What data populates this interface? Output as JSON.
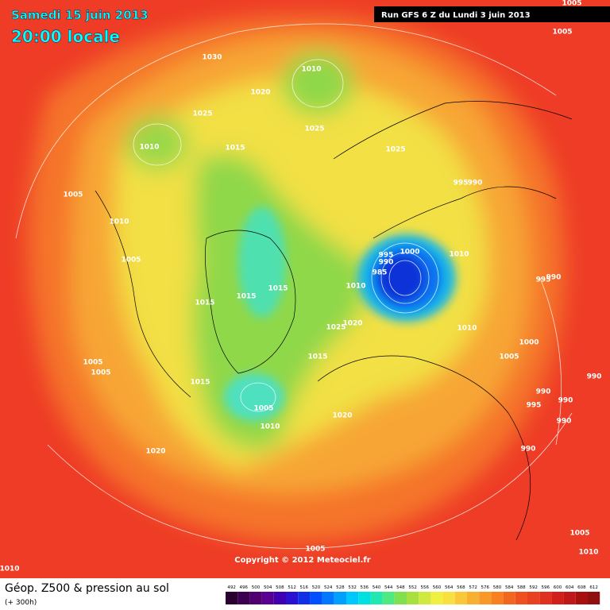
{
  "header": {
    "date": "Samedi 15 juin 2013",
    "time": "20:00 locale",
    "run": "Run GFS 6 Z du Lundi 3 juin 2013"
  },
  "copyright": "Copyright © 2012 Meteociel.fr",
  "footer": {
    "title": "Géop. Z500 & pression au sol",
    "lead": "(+ 300h)"
  },
  "map": {
    "isobar_labels": [
      1005,
      1005,
      1030,
      1010,
      1020,
      1025,
      1025,
      1025,
      1010,
      1015,
      1005,
      995,
      990,
      1010,
      1005,
      995,
      990,
      1000,
      985,
      1010,
      995,
      990,
      1015,
      1015,
      1015,
      1010,
      1020,
      1025,
      1010,
      1000,
      1015,
      1005,
      1005,
      1005,
      990,
      1015,
      990,
      990,
      995,
      1005,
      1010,
      1020,
      990,
      990,
      1020,
      1005,
      1005,
      1010,
      1010
    ]
  },
  "colorbar": {
    "levels": [
      492,
      496,
      500,
      504,
      508,
      512,
      516,
      520,
      524,
      528,
      532,
      536,
      540,
      544,
      548,
      552,
      556,
      560,
      564,
      568,
      572,
      576,
      580,
      584,
      588,
      592,
      596,
      600,
      604,
      608,
      612
    ],
    "colors": [
      "#2a0030",
      "#3c0050",
      "#50006e",
      "#5a0090",
      "#4000b0",
      "#2a10d0",
      "#1030e8",
      "#0050ff",
      "#0078ff",
      "#00a0ff",
      "#00c8ff",
      "#00e0e0",
      "#20e8b0",
      "#50e880",
      "#80e050",
      "#a8e040",
      "#d0e840",
      "#f0f040",
      "#f8e040",
      "#f8c838",
      "#f8b030",
      "#f89828",
      "#f88020",
      "#f06820",
      "#f05020",
      "#e84020",
      "#e03020",
      "#d02018",
      "#c01818",
      "#a81010",
      "#901010"
    ]
  }
}
